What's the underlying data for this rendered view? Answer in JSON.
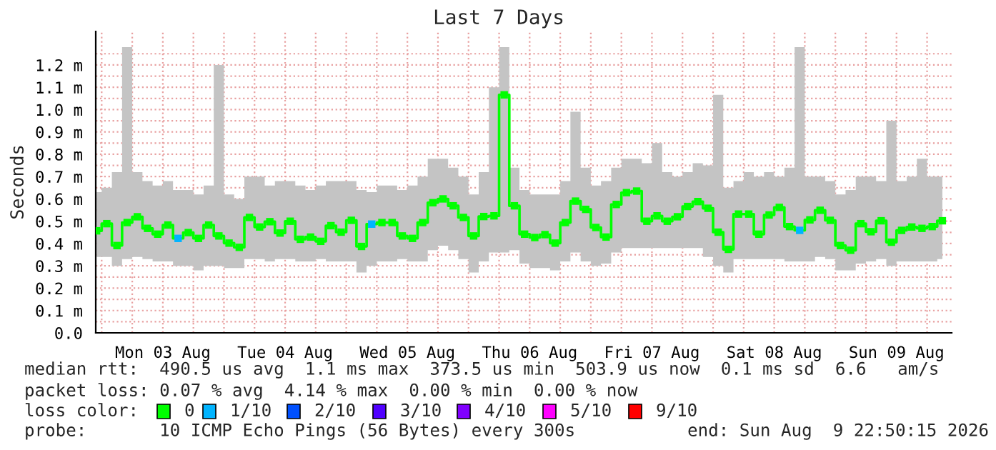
{
  "chart_data": {
    "type": "step",
    "title": "Last 7 Days",
    "ylabel": "Seconds",
    "x": [
      "2026-08-02T23:00",
      "2026-08-03T01:00",
      "2026-08-03T03:00",
      "2026-08-03T05:00",
      "2026-08-03T07:00",
      "2026-08-03T09:00",
      "2026-08-03T11:00",
      "2026-08-03T13:00",
      "2026-08-03T15:00",
      "2026-08-03T17:00",
      "2026-08-03T19:00",
      "2026-08-03T21:00",
      "2026-08-03T23:00",
      "2026-08-04T01:00",
      "2026-08-04T03:00",
      "2026-08-04T05:00",
      "2026-08-04T07:00",
      "2026-08-04T09:00",
      "2026-08-04T11:00",
      "2026-08-04T13:00",
      "2026-08-04T15:00",
      "2026-08-04T17:00",
      "2026-08-04T19:00",
      "2026-08-04T21:00",
      "2026-08-04T23:00",
      "2026-08-05T01:00",
      "2026-08-05T03:00",
      "2026-08-05T05:00",
      "2026-08-05T07:00",
      "2026-08-05T09:00",
      "2026-08-05T11:00",
      "2026-08-05T13:00",
      "2026-08-05T15:00",
      "2026-08-05T17:00",
      "2026-08-05T19:00",
      "2026-08-05T21:00",
      "2026-08-05T23:00",
      "2026-08-06T01:00",
      "2026-08-06T03:00",
      "2026-08-06T05:00",
      "2026-08-06T07:00",
      "2026-08-06T09:00",
      "2026-08-06T11:00",
      "2026-08-06T13:00",
      "2026-08-06T15:00",
      "2026-08-06T17:00",
      "2026-08-06T19:00",
      "2026-08-06T21:00",
      "2026-08-06T23:00",
      "2026-08-07T01:00",
      "2026-08-07T03:00",
      "2026-08-07T05:00",
      "2026-08-07T07:00",
      "2026-08-07T09:00",
      "2026-08-07T11:00",
      "2026-08-07T13:00",
      "2026-08-07T15:00",
      "2026-08-07T17:00",
      "2026-08-07T19:00",
      "2026-08-07T21:00",
      "2026-08-07T23:00",
      "2026-08-08T01:00",
      "2026-08-08T03:00",
      "2026-08-08T05:00",
      "2026-08-08T07:00",
      "2026-08-08T09:00",
      "2026-08-08T11:00",
      "2026-08-08T13:00",
      "2026-08-08T15:00",
      "2026-08-08T17:00",
      "2026-08-08T19:00",
      "2026-08-08T21:00",
      "2026-08-08T23:00",
      "2026-08-09T01:00",
      "2026-08-09T03:00",
      "2026-08-09T05:00",
      "2026-08-09T07:00",
      "2026-08-09T09:00",
      "2026-08-09T11:00",
      "2026-08-09T13:00",
      "2026-08-09T15:00",
      "2026-08-09T17:00",
      "2026-08-09T19:00",
      "2026-08-09T21:00"
    ],
    "series": [
      {
        "color": "#00ff00",
        "values": [
          0.457,
          0.489,
          0.391,
          0.494,
          0.52,
          0.468,
          0.442,
          0.483,
          0.423,
          0.449,
          0.423,
          0.483,
          0.434,
          0.402,
          0.383,
          0.517,
          0.474,
          0.498,
          0.447,
          0.5,
          0.419,
          0.429,
          0.41,
          0.48,
          0.451,
          0.504,
          0.387,
          0.487,
          0.494,
          0.494,
          0.434,
          0.423,
          0.494,
          0.583,
          0.6,
          0.569,
          0.517,
          0.434,
          0.521,
          0.524,
          1.066,
          0.569,
          0.442,
          0.427,
          0.44,
          0.402,
          0.494,
          0.59,
          0.553,
          0.472,
          0.429,
          0.575,
          0.628,
          0.635,
          0.5,
          0.524,
          0.5,
          0.52,
          0.566,
          0.588,
          0.558,
          0.451,
          0.374,
          0.532,
          0.532,
          0.442,
          0.528,
          0.562,
          0.476,
          0.459,
          0.506,
          0.549,
          0.504,
          0.391,
          0.37,
          0.489,
          0.453,
          0.502,
          0.406,
          0.459,
          0.474,
          0.468,
          0.476,
          0.502
        ],
        "colors": [
          "#00ff00",
          "#00ff00",
          "#00ff00",
          "#00ff00",
          "#00ff00",
          "#00ff00",
          "#00ff00",
          "#00ff00",
          "#00b4ff",
          "#00ff00",
          "#00ff00",
          "#00ff00",
          "#00ff00",
          "#00ff00",
          "#00ff00",
          "#00ff00",
          "#00ff00",
          "#00ff00",
          "#00ff00",
          "#00ff00",
          "#00ff00",
          "#00ff00",
          "#00ff00",
          "#00ff00",
          "#00ff00",
          "#00ff00",
          "#00ff00",
          "#00b4ff",
          "#00ff00",
          "#00ff00",
          "#00ff00",
          "#00ff00",
          "#00ff00",
          "#00ff00",
          "#00ff00",
          "#00ff00",
          "#00ff00",
          "#00ff00",
          "#00ff00",
          "#00ff00",
          "#00ff00",
          "#00ff00",
          "#00ff00",
          "#00ff00",
          "#00ff00",
          "#00ff00",
          "#00ff00",
          "#00ff00",
          "#00ff00",
          "#00ff00",
          "#00ff00",
          "#00ff00",
          "#00ff00",
          "#00ff00",
          "#00ff00",
          "#00ff00",
          "#00ff00",
          "#00ff00",
          "#00ff00",
          "#00ff00",
          "#00ff00",
          "#00ff00",
          "#00ff00",
          "#00ff00",
          "#00ff00",
          "#00ff00",
          "#00ff00",
          "#00ff00",
          "#00ff00",
          "#00b4ff",
          "#00ff00",
          "#00ff00",
          "#00ff00",
          "#00ff00",
          "#00ff00",
          "#00ff00",
          "#00ff00",
          "#00ff00",
          "#00ff00",
          "#00ff00",
          "#00ff00",
          "#00ff00",
          "#00ff00",
          "#00ff00"
        ],
        "lower": [
          0.34,
          0.34,
          0.3,
          0.33,
          0.34,
          0.33,
          0.32,
          0.32,
          0.3,
          0.3,
          0.28,
          0.3,
          0.3,
          0.29,
          0.29,
          0.33,
          0.33,
          0.32,
          0.33,
          0.33,
          0.32,
          0.32,
          0.33,
          0.32,
          0.32,
          0.32,
          0.27,
          0.3,
          0.32,
          0.32,
          0.33,
          0.32,
          0.32,
          0.37,
          0.39,
          0.37,
          0.33,
          0.27,
          0.32,
          0.36,
          0.36,
          0.37,
          0.31,
          0.29,
          0.29,
          0.28,
          0.32,
          0.36,
          0.32,
          0.3,
          0.31,
          0.36,
          0.38,
          0.38,
          0.38,
          0.38,
          0.38,
          0.38,
          0.38,
          0.38,
          0.34,
          0.3,
          0.27,
          0.33,
          0.33,
          0.33,
          0.33,
          0.33,
          0.32,
          0.32,
          0.32,
          0.34,
          0.33,
          0.28,
          0.28,
          0.31,
          0.32,
          0.33,
          0.3,
          0.32,
          0.32,
          0.32,
          0.32,
          0.33
        ],
        "upper": [
          0.63,
          0.65,
          0.72,
          1.28,
          0.72,
          0.68,
          0.66,
          0.68,
          0.64,
          0.64,
          0.62,
          0.66,
          1.2,
          0.62,
          0.6,
          0.7,
          0.7,
          0.66,
          0.68,
          0.68,
          0.66,
          0.64,
          0.66,
          0.68,
          0.68,
          0.68,
          0.64,
          0.63,
          0.66,
          0.66,
          0.64,
          0.66,
          0.7,
          0.78,
          0.78,
          0.74,
          0.7,
          0.62,
          0.72,
          1.1,
          1.28,
          0.74,
          0.64,
          0.62,
          0.62,
          0.62,
          0.68,
          0.99,
          0.74,
          0.66,
          0.68,
          0.74,
          0.78,
          0.78,
          0.76,
          0.85,
          0.72,
          0.7,
          0.72,
          0.76,
          0.75,
          1.066,
          0.65,
          0.68,
          0.72,
          0.7,
          0.72,
          0.7,
          0.74,
          1.28,
          0.7,
          0.7,
          0.68,
          0.62,
          0.64,
          0.7,
          0.7,
          0.68,
          0.95,
          0.68,
          0.7,
          0.78,
          0.7,
          0.7
        ]
      }
    ],
    "marker": "square",
    "grid": true,
    "xlim": [
      "2026-08-02T22:50",
      "2026-08-09T22:50"
    ],
    "xticks": [
      {
        "value": "2026-08-03T00:00",
        "label": null
      },
      {
        "value": "2026-08-03T06:00",
        "label": null
      },
      {
        "value": "2026-08-03T12:00",
        "label": "Mon 03 Aug"
      },
      {
        "value": "2026-08-03T18:00",
        "label": null
      },
      {
        "value": "2026-08-04T00:00",
        "label": null
      },
      {
        "value": "2026-08-04T06:00",
        "label": null
      },
      {
        "value": "2026-08-04T12:00",
        "label": "Tue 04 Aug"
      },
      {
        "value": "2026-08-04T18:00",
        "label": null
      },
      {
        "value": "2026-08-05T00:00",
        "label": null
      },
      {
        "value": "2026-08-05T06:00",
        "label": null
      },
      {
        "value": "2026-08-05T12:00",
        "label": "Wed 05 Aug"
      },
      {
        "value": "2026-08-05T18:00",
        "label": null
      },
      {
        "value": "2026-08-06T00:00",
        "label": null
      },
      {
        "value": "2026-08-06T06:00",
        "label": null
      },
      {
        "value": "2026-08-06T12:00",
        "label": "Thu 06 Aug"
      },
      {
        "value": "2026-08-06T18:00",
        "label": null
      },
      {
        "value": "2026-08-07T00:00",
        "label": null
      },
      {
        "value": "2026-08-07T06:00",
        "label": null
      },
      {
        "value": "2026-08-07T12:00",
        "label": "Fri 07 Aug"
      },
      {
        "value": "2026-08-07T18:00",
        "label": null
      },
      {
        "value": "2026-08-08T00:00",
        "label": null
      },
      {
        "value": "2026-08-08T06:00",
        "label": null
      },
      {
        "value": "2026-08-08T12:00",
        "label": "Sat 08 Aug"
      },
      {
        "value": "2026-08-08T18:00",
        "label": null
      },
      {
        "value": "2026-08-09T00:00",
        "label": null
      },
      {
        "value": "2026-08-09T06:00",
        "label": null
      },
      {
        "value": "2026-08-09T12:00",
        "label": "Sun 09 Aug"
      },
      {
        "value": "2026-08-09T18:00",
        "label": null
      }
    ],
    "ylim": [
      0,
      1.35
    ],
    "yticks": [
      {
        "value": 0,
        "label": "0.0"
      },
      {
        "value": 0.05,
        "label": null
      },
      {
        "value": 0.1,
        "label": "0.1 m"
      },
      {
        "value": 0.15,
        "label": null
      },
      {
        "value": 0.2,
        "label": "0.2 m"
      },
      {
        "value": 0.25,
        "label": null
      },
      {
        "value": 0.3,
        "label": "0.3 m"
      },
      {
        "value": 0.35,
        "label": null
      },
      {
        "value": 0.4,
        "label": "0.4 m"
      },
      {
        "value": 0.45,
        "label": null
      },
      {
        "value": 0.5,
        "label": "0.5 m"
      },
      {
        "value": 0.55,
        "label": null
      },
      {
        "value": 0.6,
        "label": "0.6 m"
      },
      {
        "value": 0.65,
        "label": null
      },
      {
        "value": 0.7,
        "label": "0.7 m"
      },
      {
        "value": 0.75,
        "label": null
      },
      {
        "value": 0.8,
        "label": "0.8 m"
      },
      {
        "value": 0.85,
        "label": null
      },
      {
        "value": 0.9,
        "label": "0.9 m"
      },
      {
        "value": 0.95,
        "label": null
      },
      {
        "value": 1.0,
        "label": "1.0 m"
      },
      {
        "value": 1.05,
        "label": null
      },
      {
        "value": 1.1,
        "label": "1.1 m"
      },
      {
        "value": 1.15,
        "label": null
      },
      {
        "value": 1.2,
        "label": "1.2 m"
      },
      {
        "value": 1.25,
        "label": null
      }
    ],
    "annotations": [
      "median rtt:  490.5 us avg  1.1 ms max  373.5 us min  503.9 us now  0.1 ms sd  6.6   am/s",
      "packet loss: 0.07 % avg  4.14 % max  0.00 % min  0.00 % now",
      "loss color:",
      "0",
      "1/10",
      "2/10",
      "3/10",
      "4/10",
      "5/10",
      "9/10",
      "probe:       10 ICMP Echo Pings (56 Bytes) every 300s",
      "end: Sun Aug  9 22:50:15 2026"
    ]
  }
}
